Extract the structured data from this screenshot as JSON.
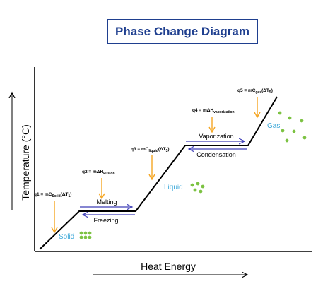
{
  "title": "Phase Change Diagram",
  "axes": {
    "y_label": "Temperature (°C)",
    "x_label": "Heat Energy"
  },
  "colors": {
    "title": "#1f3f8f",
    "state_label": "#3aa7d8",
    "dots": "#7cc242",
    "heat_arrow": "#f5a623",
    "phase_arrow": "#3d3db8",
    "curve": "#000000"
  },
  "phases": {
    "solid": "Solid",
    "liquid": "Liquid",
    "gas": "Gas"
  },
  "transitions": {
    "melting": "Melting",
    "freezing": "Freezing",
    "vaporization": "Vaporization",
    "condensation": "Condensation"
  },
  "equations": {
    "q1": {
      "prefix": "q1 = mC",
      "sub": "Solid",
      "open": "(ΔT",
      "sub2": "1",
      "close": ")"
    },
    "q2": {
      "prefix": "q2 = mΔH",
      "sub": "Fusion"
    },
    "q3": {
      "prefix": "q3 = mC",
      "sub": "liquid",
      "open": "(ΔT",
      "sub2": "3",
      "close": ")"
    },
    "q4": {
      "prefix": "q4 = mΔH",
      "sub": "vaporization"
    },
    "q5": {
      "prefix": "q5 = mC",
      "sub": "gas",
      "open": "(ΔT",
      "sub2": "5",
      "close": ")"
    }
  }
}
